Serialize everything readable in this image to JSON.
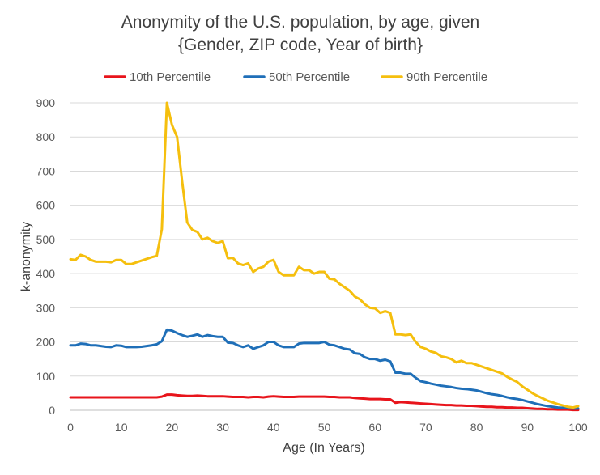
{
  "chart_data": {
    "type": "line",
    "title_line1": "Anonymity of the U.S. population, by age, given",
    "title_line2": "{Gender, ZIP code, Year of birth}",
    "xlabel": "Age (In Years)",
    "ylabel": "k-anonymity",
    "xlim": [
      0,
      100
    ],
    "ylim": [
      0,
      900
    ],
    "x_ticks": [
      0,
      10,
      20,
      30,
      40,
      50,
      60,
      70,
      80,
      90,
      100
    ],
    "y_ticks": [
      0,
      100,
      200,
      300,
      400,
      500,
      600,
      700,
      800,
      900
    ],
    "grid": "horizontal",
    "legend_position": "top",
    "series": [
      {
        "name": "10th Percentile",
        "color": "#e8141b",
        "x": [
          0,
          1,
          2,
          3,
          4,
          5,
          6,
          7,
          8,
          9,
          10,
          11,
          12,
          13,
          14,
          15,
          16,
          17,
          18,
          19,
          20,
          21,
          22,
          23,
          24,
          25,
          26,
          27,
          28,
          29,
          30,
          31,
          32,
          33,
          34,
          35,
          36,
          37,
          38,
          39,
          40,
          41,
          42,
          43,
          44,
          45,
          46,
          47,
          48,
          49,
          50,
          51,
          52,
          53,
          54,
          55,
          56,
          57,
          58,
          59,
          60,
          61,
          62,
          63,
          64,
          65,
          66,
          67,
          68,
          69,
          70,
          71,
          72,
          73,
          74,
          75,
          76,
          77,
          78,
          79,
          80,
          81,
          82,
          83,
          84,
          85,
          86,
          87,
          88,
          89,
          90,
          91,
          92,
          93,
          94,
          95,
          96,
          97,
          98,
          99,
          100
        ],
        "values": [
          38,
          38,
          38,
          38,
          38,
          38,
          38,
          38,
          38,
          38,
          38,
          38,
          38,
          38,
          38,
          38,
          38,
          38,
          40,
          46,
          46,
          44,
          43,
          42,
          42,
          43,
          42,
          41,
          41,
          41,
          41,
          40,
          39,
          39,
          39,
          38,
          39,
          39,
          38,
          40,
          41,
          40,
          39,
          39,
          39,
          40,
          40,
          40,
          40,
          40,
          40,
          39,
          39,
          38,
          38,
          38,
          36,
          35,
          34,
          33,
          33,
          33,
          32,
          32,
          22,
          24,
          23,
          22,
          21,
          20,
          19,
          18,
          17,
          16,
          15,
          15,
          14,
          14,
          13,
          13,
          12,
          11,
          10,
          10,
          9,
          9,
          8,
          8,
          7,
          7,
          6,
          5,
          4,
          4,
          3,
          3,
          2,
          2,
          2,
          1,
          1
        ]
      },
      {
        "name": "50th Percentile",
        "color": "#1f6fb8",
        "x": [
          0,
          1,
          2,
          3,
          4,
          5,
          6,
          7,
          8,
          9,
          10,
          11,
          12,
          13,
          14,
          15,
          16,
          17,
          18,
          19,
          20,
          21,
          22,
          23,
          24,
          25,
          26,
          27,
          28,
          29,
          30,
          31,
          32,
          33,
          34,
          35,
          36,
          37,
          38,
          39,
          40,
          41,
          42,
          43,
          44,
          45,
          46,
          47,
          48,
          49,
          50,
          51,
          52,
          53,
          54,
          55,
          56,
          57,
          58,
          59,
          60,
          61,
          62,
          63,
          64,
          65,
          66,
          67,
          68,
          69,
          70,
          71,
          72,
          73,
          74,
          75,
          76,
          77,
          78,
          79,
          80,
          81,
          82,
          83,
          84,
          85,
          86,
          87,
          88,
          89,
          90,
          91,
          92,
          93,
          94,
          95,
          96,
          97,
          98,
          99,
          100
        ],
        "values": [
          190,
          190,
          195,
          194,
          190,
          190,
          188,
          186,
          185,
          190,
          189,
          185,
          185,
          185,
          186,
          188,
          190,
          193,
          202,
          236,
          233,
          226,
          220,
          215,
          218,
          222,
          215,
          220,
          217,
          215,
          215,
          198,
          197,
          190,
          185,
          190,
          180,
          185,
          190,
          200,
          200,
          190,
          185,
          185,
          185,
          195,
          197,
          197,
          197,
          197,
          200,
          192,
          190,
          185,
          180,
          178,
          167,
          165,
          155,
          150,
          150,
          145,
          148,
          143,
          110,
          110,
          107,
          107,
          95,
          85,
          82,
          78,
          75,
          72,
          70,
          68,
          65,
          63,
          62,
          60,
          58,
          54,
          50,
          47,
          45,
          42,
          38,
          35,
          33,
          30,
          26,
          22,
          18,
          15,
          12,
          10,
          8,
          7,
          6,
          5,
          5
        ]
      },
      {
        "name": "90th Percentile",
        "color": "#f5bf0e",
        "x": [
          0,
          1,
          2,
          3,
          4,
          5,
          6,
          7,
          8,
          9,
          10,
          11,
          12,
          13,
          14,
          15,
          16,
          17,
          18,
          19,
          20,
          21,
          22,
          23,
          24,
          25,
          26,
          27,
          28,
          29,
          30,
          31,
          32,
          33,
          34,
          35,
          36,
          37,
          38,
          39,
          40,
          41,
          42,
          43,
          44,
          45,
          46,
          47,
          48,
          49,
          50,
          51,
          52,
          53,
          54,
          55,
          56,
          57,
          58,
          59,
          60,
          61,
          62,
          63,
          64,
          65,
          66,
          67,
          68,
          69,
          70,
          71,
          72,
          73,
          74,
          75,
          76,
          77,
          78,
          79,
          80,
          81,
          82,
          83,
          84,
          85,
          86,
          87,
          88,
          89,
          90,
          91,
          92,
          93,
          94,
          95,
          96,
          97,
          98,
          99,
          100
        ],
        "values": [
          442,
          440,
          455,
          450,
          440,
          435,
          435,
          435,
          433,
          440,
          440,
          428,
          428,
          433,
          438,
          443,
          448,
          452,
          530,
          900,
          835,
          800,
          670,
          550,
          528,
          522,
          500,
          505,
          495,
          490,
          495,
          445,
          446,
          430,
          425,
          430,
          405,
          415,
          420,
          435,
          440,
          405,
          395,
          395,
          395,
          420,
          410,
          410,
          400,
          405,
          405,
          385,
          383,
          370,
          360,
          350,
          333,
          325,
          310,
          300,
          298,
          285,
          290,
          285,
          222,
          222,
          220,
          222,
          200,
          185,
          180,
          172,
          168,
          158,
          155,
          150,
          140,
          145,
          138,
          138,
          133,
          128,
          123,
          118,
          113,
          108,
          98,
          90,
          83,
          70,
          60,
          50,
          42,
          35,
          28,
          23,
          18,
          14,
          10,
          8,
          12
        ]
      }
    ]
  }
}
